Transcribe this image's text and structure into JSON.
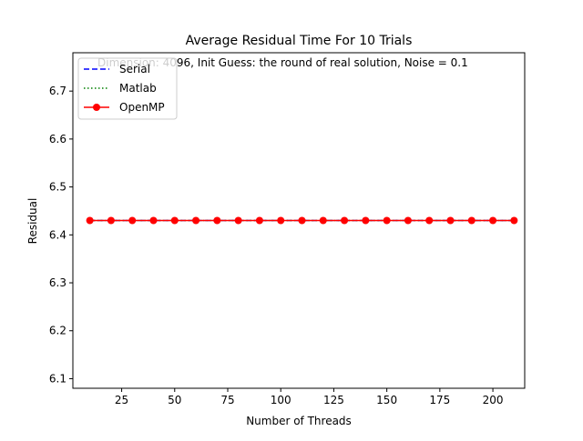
{
  "chart_data": {
    "type": "line",
    "title": "Average Residual Time For 10 Trials",
    "annotation": "Dimension: 4096, Init Guess: the round of real solution, Noise = 0.1",
    "xlabel": "Number of Threads",
    "ylabel": "Residual",
    "xlim": [
      2,
      215
    ],
    "ylim": [
      6.08,
      6.78
    ],
    "xticks": [
      25,
      50,
      75,
      100,
      125,
      150,
      175,
      200
    ],
    "yticks": [
      6.1,
      6.2,
      6.3,
      6.4,
      6.5,
      6.6,
      6.7
    ],
    "x": [
      10,
      20,
      30,
      40,
      50,
      60,
      70,
      80,
      90,
      100,
      110,
      120,
      130,
      140,
      150,
      160,
      170,
      180,
      190,
      200,
      210
    ],
    "legend_position": "top-left",
    "grid": false,
    "series": [
      {
        "name": "Serial",
        "style": "dashed",
        "color": "#0000ff",
        "marker": "none",
        "values": [
          6.43,
          6.43,
          6.43,
          6.43,
          6.43,
          6.43,
          6.43,
          6.43,
          6.43,
          6.43,
          6.43,
          6.43,
          6.43,
          6.43,
          6.43,
          6.43,
          6.43,
          6.43,
          6.43,
          6.43,
          6.43
        ]
      },
      {
        "name": "Matlab",
        "style": "dotted",
        "color": "#008000",
        "marker": "none",
        "values": [
          6.43,
          6.43,
          6.43,
          6.43,
          6.43,
          6.43,
          6.43,
          6.43,
          6.43,
          6.43,
          6.43,
          6.43,
          6.43,
          6.43,
          6.43,
          6.43,
          6.43,
          6.43,
          6.43,
          6.43,
          6.43
        ]
      },
      {
        "name": "OpenMP",
        "style": "solid",
        "color": "#ff0000",
        "marker": "circle",
        "values": [
          6.43,
          6.43,
          6.43,
          6.43,
          6.43,
          6.43,
          6.43,
          6.43,
          6.43,
          6.43,
          6.43,
          6.43,
          6.43,
          6.43,
          6.43,
          6.43,
          6.43,
          6.43,
          6.43,
          6.43,
          6.43
        ]
      }
    ]
  }
}
